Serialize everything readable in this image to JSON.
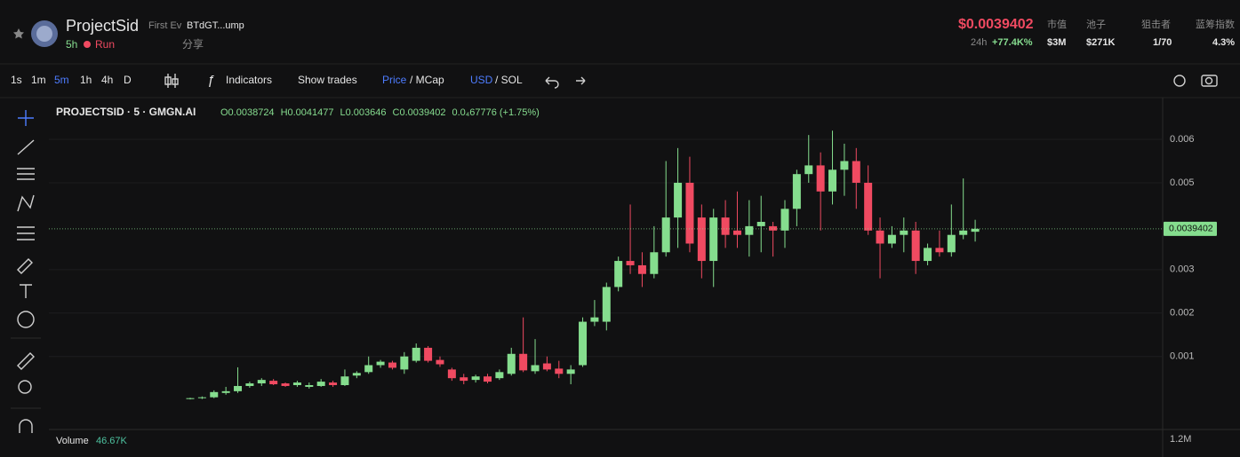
{
  "header": {
    "name": "ProjectSid",
    "tag": "First Ev",
    "address": "BTdGT...ump",
    "age": "5h",
    "status": "Run",
    "share": "分享",
    "price": "$0.0039402",
    "change_label": "24h",
    "change": "+77.4K%",
    "stats": [
      {
        "label": "市值",
        "value": "$3M"
      },
      {
        "label": "池子",
        "value": "$271K"
      },
      {
        "label": "狙击者",
        "value": "1/70"
      },
      {
        "label": "蓝筹指数",
        "value": "4.3%"
      }
    ]
  },
  "toolbar": {
    "intervals": [
      "1s",
      "1m",
      "5m",
      "1h",
      "4h",
      "D"
    ],
    "indicators": "Indicators",
    "show_trades": "Show trades",
    "price": "Price",
    "mcap": "/ MCap",
    "usd": "USD",
    "sol": "/ SOL"
  },
  "chart_data": {
    "type": "candlestick",
    "title": "PROJECTSID · 5 · GMGN.AI",
    "legend": [
      "O0.0038724",
      "H0.0041477",
      "L0.003646",
      "C0.0039402"
    ],
    "legend_change": "0.0₄67776 (+1.75%)",
    "up_color": "#85dd8e",
    "down_color": "#f04a61",
    "ylim": [
      -0.0006,
      0.0069
    ],
    "yticks": [
      0.001,
      0.002,
      0.003,
      0.005,
      0.006
    ],
    "grid": true,
    "last_price_label": "0.0039402",
    "volume_label": "Volume",
    "volume_value": "46.67K",
    "volume_tick": "1.2M",
    "series": {
      "open": [
        2e-05,
        4e-05,
        6e-05,
        0.00016,
        0.0002,
        0.00032,
        0.00038,
        0.00044,
        0.00038,
        0.00034,
        0.0003,
        0.00032,
        0.0004,
        0.00034,
        0.00056,
        0.00064,
        0.0008,
        0.00086,
        0.0007,
        0.0009,
        0.0012,
        0.00092,
        0.0007,
        0.00052,
        0.00046,
        0.00054,
        0.0005,
        0.0006,
        0.00106,
        0.00066,
        0.00084,
        0.00072,
        0.0006,
        0.0008,
        0.0018,
        0.0018,
        0.0026,
        0.0032,
        0.0031,
        0.0029,
        0.0034,
        0.0042,
        0.005,
        0.0042,
        0.0032,
        0.0042,
        0.0039,
        0.0038,
        0.004,
        0.004,
        0.0039,
        0.0044,
        0.0052,
        0.0054,
        0.0048,
        0.0053,
        0.0055,
        0.005,
        0.0039,
        0.0036,
        0.0038,
        0.0039,
        0.0032,
        0.0035,
        0.0034,
        0.0038,
        0.0038724
      ],
      "high": [
        5e-05,
        8e-05,
        0.00022,
        0.0003,
        0.00075,
        0.00042,
        0.0005,
        0.00048,
        0.0004,
        0.00044,
        0.0004,
        0.00048,
        0.00044,
        0.0007,
        0.00066,
        0.001,
        0.00092,
        0.0009,
        0.0011,
        0.0013,
        0.00124,
        0.001,
        0.00074,
        0.0006,
        0.00058,
        0.0006,
        0.0007,
        0.0012,
        0.0019,
        0.0014,
        0.001,
        0.0009,
        0.0008,
        0.0019,
        0.0023,
        0.0027,
        0.0033,
        0.0045,
        0.0034,
        0.004,
        0.0055,
        0.0058,
        0.0056,
        0.0045,
        0.0044,
        0.0046,
        0.0048,
        0.0046,
        0.0047,
        0.0041,
        0.0046,
        0.0053,
        0.0061,
        0.0057,
        0.0062,
        0.0059,
        0.0058,
        0.0054,
        0.0042,
        0.004,
        0.0042,
        0.0041,
        0.0036,
        0.0039,
        0.0045,
        0.0051,
        0.0041477
      ],
      "low": [
        1e-05,
        2e-05,
        4e-05,
        0.00012,
        0.00016,
        0.00028,
        0.00032,
        0.00034,
        0.0003,
        0.0003,
        0.00026,
        0.0003,
        0.0003,
        0.00032,
        0.0005,
        0.0006,
        0.00074,
        0.0007,
        0.0006,
        0.00086,
        0.00086,
        0.00076,
        0.00044,
        0.00036,
        0.0004,
        0.00038,
        0.00046,
        0.00056,
        0.00064,
        0.0006,
        0.00066,
        0.0005,
        0.00036,
        0.00076,
        0.0017,
        0.0016,
        0.0025,
        0.0029,
        0.0026,
        0.0028,
        0.0033,
        0.0035,
        0.0034,
        0.0028,
        0.0026,
        0.0035,
        0.0035,
        0.0033,
        0.0034,
        0.0033,
        0.0035,
        0.004,
        0.005,
        0.0039,
        0.0045,
        0.0047,
        0.0044,
        0.0038,
        0.0028,
        0.0035,
        0.0034,
        0.0029,
        0.0031,
        0.0033,
        0.0033,
        0.0037,
        0.003646
      ],
      "close": [
        4e-05,
        6e-05,
        0.00018,
        0.0002,
        0.00032,
        0.00038,
        0.00046,
        0.00036,
        0.00032,
        0.0004,
        0.00034,
        0.00042,
        0.00034,
        0.00054,
        0.00062,
        0.0008,
        0.00088,
        0.00074,
        0.001,
        0.0012,
        0.0009,
        0.00082,
        0.0005,
        0.00044,
        0.00054,
        0.00042,
        0.00064,
        0.00106,
        0.00068,
        0.0008,
        0.0007,
        0.0006,
        0.0007,
        0.0018,
        0.0019,
        0.0026,
        0.0032,
        0.0031,
        0.0029,
        0.0034,
        0.0042,
        0.005,
        0.0036,
        0.0032,
        0.0042,
        0.0038,
        0.0038,
        0.004,
        0.0041,
        0.0039,
        0.0044,
        0.0052,
        0.0054,
        0.0048,
        0.0053,
        0.0055,
        0.005,
        0.0039,
        0.0036,
        0.0038,
        0.0039,
        0.0032,
        0.0035,
        0.0034,
        0.0038,
        0.0039,
        0.0039402
      ]
    }
  }
}
